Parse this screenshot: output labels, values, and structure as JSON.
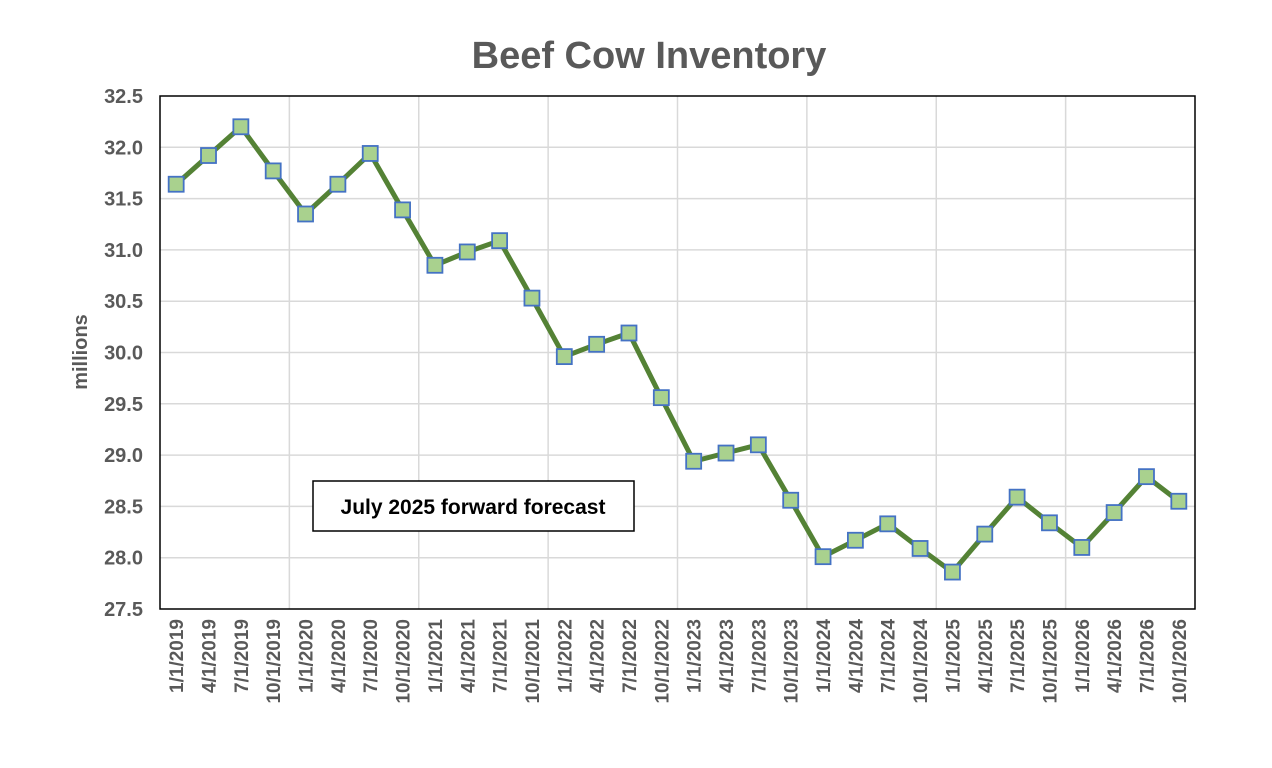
{
  "chart_data": {
    "type": "line",
    "title": "Beef Cow Inventory",
    "xlabel": "",
    "ylabel": "millions",
    "ylim": [
      27.5,
      32.5
    ],
    "ytick_step": 0.5,
    "grid": true,
    "categories": [
      "1/1/2019",
      "4/1/2019",
      "7/1/2019",
      "10/1/2019",
      "1/1/2020",
      "4/1/2020",
      "7/1/2020",
      "10/1/2020",
      "1/1/2021",
      "4/1/2021",
      "7/1/2021",
      "10/1/2021",
      "1/1/2022",
      "4/1/2022",
      "7/1/2022",
      "10/1/2022",
      "1/1/2023",
      "4/1/2023",
      "7/1/2023",
      "10/1/2023",
      "1/1/2024",
      "4/1/2024",
      "7/1/2024",
      "10/1/2024",
      "1/1/2025",
      "4/1/2025",
      "7/1/2025",
      "10/1/2025",
      "1/1/2026",
      "4/1/2026",
      "7/1/2026",
      "10/1/2026"
    ],
    "series": [
      {
        "name": "Beef Cow Inventory",
        "line_color": "#548235",
        "marker_fill": "#a9d18e",
        "marker_stroke": "#4472c4",
        "values": [
          31.64,
          31.92,
          32.2,
          31.77,
          31.35,
          31.64,
          31.94,
          31.39,
          30.85,
          30.98,
          31.09,
          30.53,
          29.96,
          30.08,
          30.19,
          29.56,
          28.94,
          29.02,
          29.1,
          28.56,
          28.01,
          28.17,
          28.33,
          28.09,
          27.86,
          28.23,
          28.59,
          28.34,
          28.1,
          28.44,
          28.79,
          28.55
        ]
      }
    ],
    "annotations": [
      {
        "text": "July 2025 forward forecast",
        "placement": "lower-left"
      }
    ]
  }
}
